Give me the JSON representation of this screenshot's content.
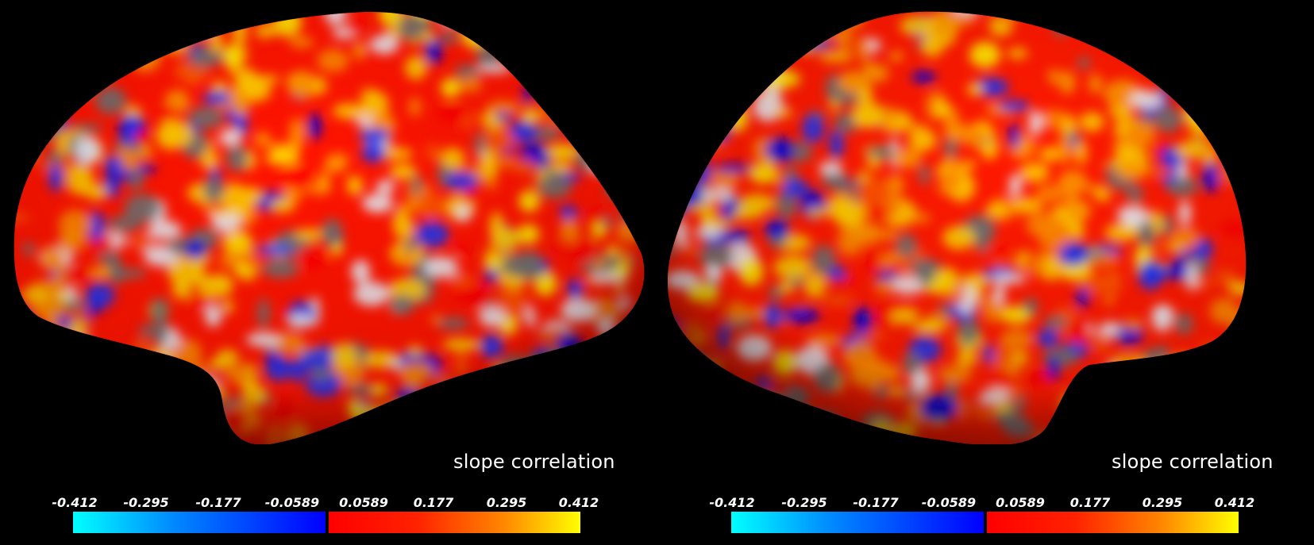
{
  "panels": [
    {
      "label": "slope correlation",
      "ticks": [
        "-0.412",
        "-0.295",
        "-0.177",
        "-0.0589",
        "0.0589",
        "0.177",
        "0.295",
        "0.412"
      ],
      "colormap_negative": [
        "#00ffff",
        "#0000ff"
      ],
      "colormap_positive": [
        "#ff0000",
        "#ffff00"
      ]
    },
    {
      "label": "slope correlation",
      "ticks": [
        "-0.412",
        "-0.295",
        "-0.177",
        "-0.0589",
        "0.0589",
        "0.177",
        "0.295",
        "0.412"
      ],
      "colormap_negative": [
        "#00ffff",
        "#0000ff"
      ],
      "colormap_positive": [
        "#ff0000",
        "#ffff00"
      ]
    }
  ],
  "colors": {
    "background": "#000000",
    "sulcal_gray": "#6e6e6e"
  }
}
